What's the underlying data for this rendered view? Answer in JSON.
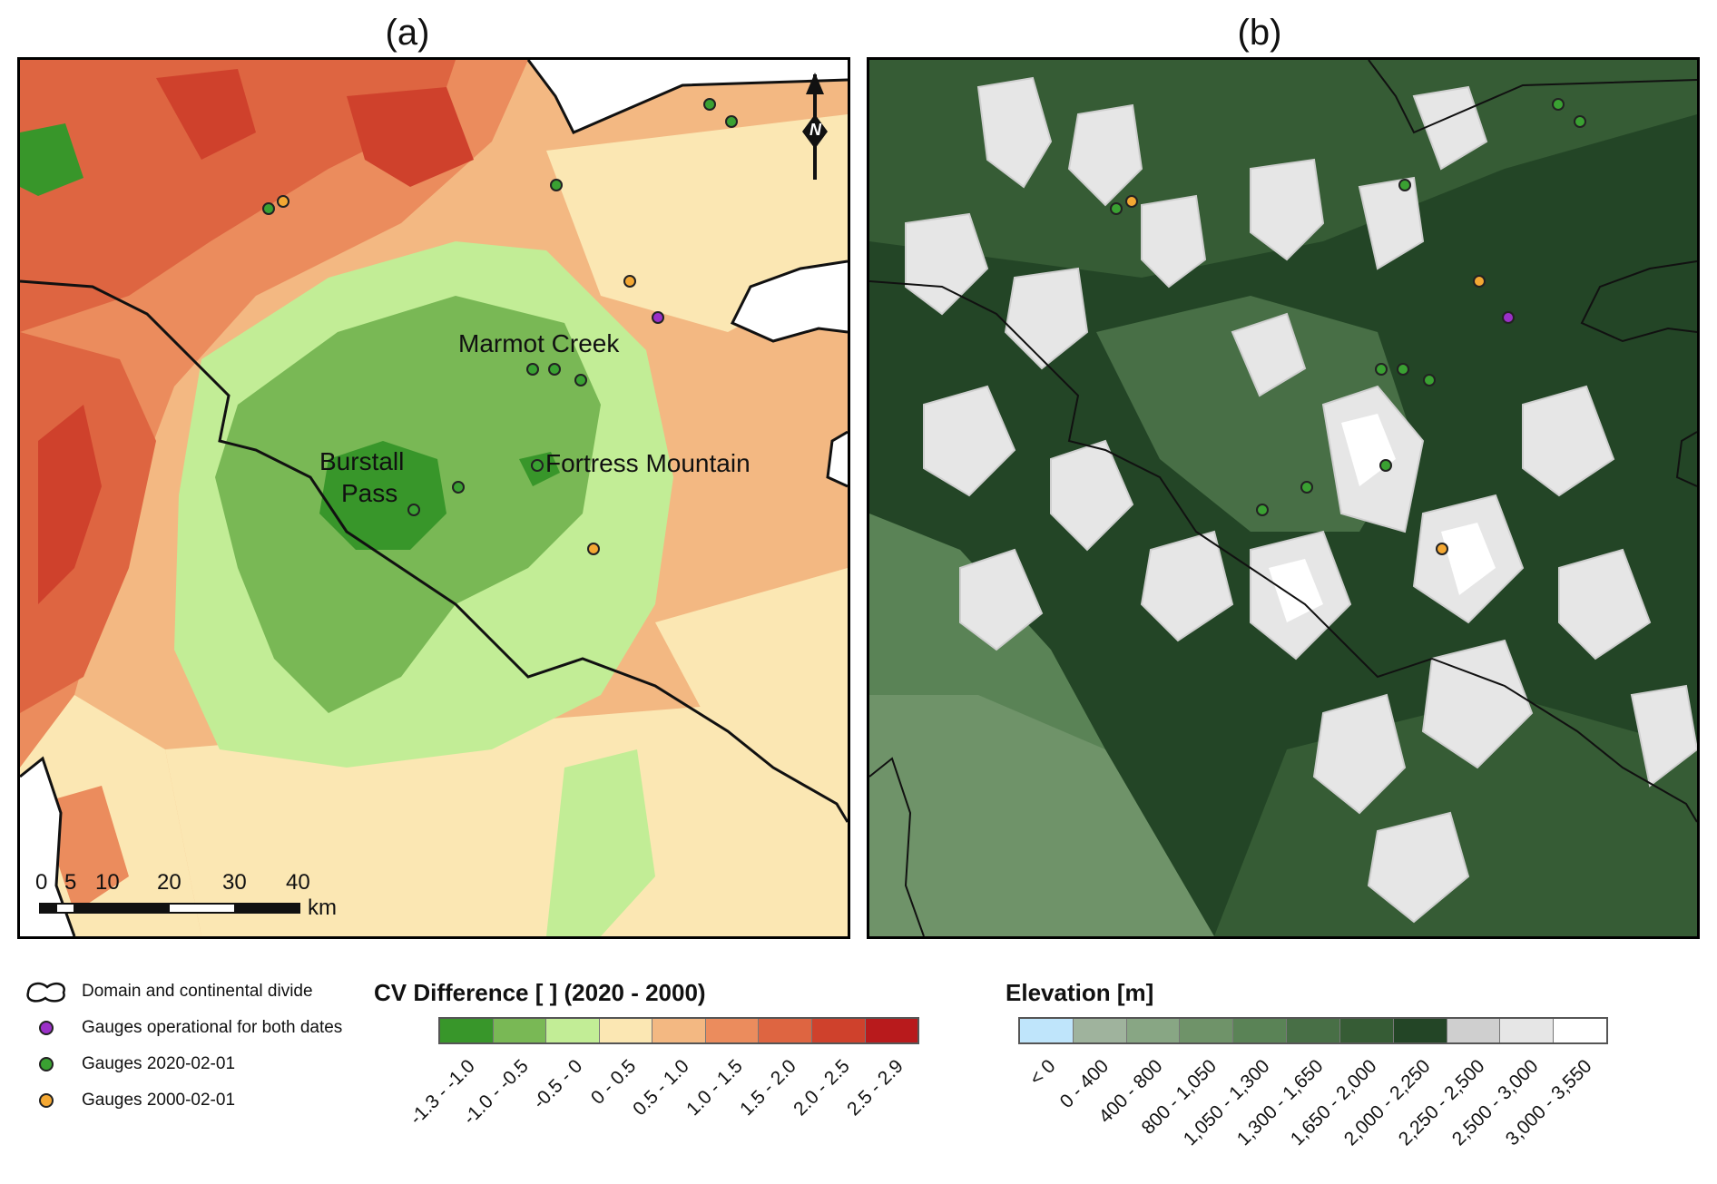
{
  "panels": {
    "a": {
      "title": "(a)"
    },
    "b": {
      "title": "(b)"
    }
  },
  "labels": {
    "marmot": "Marmot Creek",
    "fortress": "Fortress Mountain",
    "burstall_1": "Burstall",
    "burstall_2": "Pass"
  },
  "north_arrow": {
    "letter": "N",
    "icon": "north-arrow-icon"
  },
  "scalebar": {
    "ticks": [
      "0",
      "5",
      "10",
      "20",
      "30",
      "40"
    ],
    "unit": "km"
  },
  "legend": {
    "items": [
      {
        "label": "Domain and continental divide",
        "symbol": "outline-icon"
      },
      {
        "label": "Gauges operational for both dates",
        "color": "#9b30c8"
      },
      {
        "label": "Gauges 2020-02-01",
        "color": "#3aa132"
      },
      {
        "label": "Gauges 2000-02-01",
        "color": "#f4a833"
      }
    ]
  },
  "cv_colorbar": {
    "title": "CV Difference [ ] (2020 - 2000)",
    "labels": [
      "-1.3 - -1.0",
      "-1.0 - -0.5",
      "-0.5 - 0",
      "0 - 0.5",
      "0.5 - 1.0",
      "1.0 - 1.5",
      "1.5 - 2.0",
      "2.0 - 2.5",
      "2.5 - 2.9"
    ],
    "colors": [
      "#38962a",
      "#79b855",
      "#c2ed96",
      "#fbe7b3",
      "#f3b882",
      "#eb8c5d",
      "#de6541",
      "#cf412c",
      "#b81a1c"
    ]
  },
  "elev_colorbar": {
    "title": "Elevation [m]",
    "labels": [
      "< 0",
      "0 - 400",
      "400 - 800",
      "800 - 1,050",
      "1,050 - 1,300",
      "1,300 - 1,650",
      "1,650 - 2,000",
      "2,000 - 2,250",
      "2,250 - 2,500",
      "2,500 - 3,000",
      "3,000 - 3,550"
    ],
    "colors": [
      "#bfe5fb",
      "#9fb39d",
      "#88a684",
      "#6f9369",
      "#5a8356",
      "#486f46",
      "#365c35",
      "#234526",
      "#cfcfcf",
      "#e6e6e6",
      "#ffffff"
    ]
  }
}
